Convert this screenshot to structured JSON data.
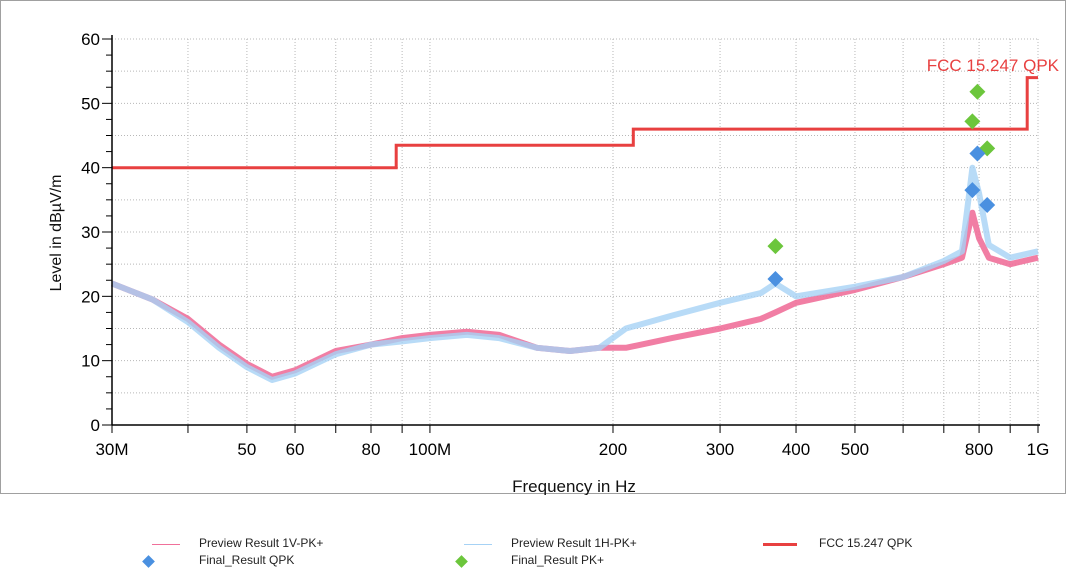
{
  "chart_data": {
    "type": "line",
    "title": "",
    "xlabel": "Frequency in Hz",
    "ylabel": "Level in dBµV/m",
    "x_scale": "log",
    "xlim": [
      30000000,
      1000000000
    ],
    "ylim": [
      0,
      60
    ],
    "grid": true,
    "legend_position": "bottom",
    "y_ticks": [
      0,
      10,
      20,
      30,
      40,
      50,
      60
    ],
    "y_tick_labels": [
      "0",
      "10",
      "20",
      "30",
      "40",
      "50",
      "60"
    ],
    "x_ticks": [
      30000000,
      50000000,
      60000000,
      80000000,
      100000000,
      200000000,
      300000000,
      400000000,
      500000000,
      800000000,
      1000000000
    ],
    "x_tick_labels": [
      "30M",
      "50",
      "60",
      "80",
      "100M",
      "200",
      "300",
      "400",
      "500",
      "800",
      "1G"
    ],
    "limit_label": "FCC 15.247 QPK",
    "series": [
      {
        "name": "Preview Result 1V-PK+",
        "color": "#f0709a",
        "x": [
          30000000,
          35000000,
          40000000,
          45000000,
          50000000,
          55000000,
          60000000,
          70000000,
          80000000,
          90000000,
          100000000,
          115000000,
          130000000,
          150000000,
          170000000,
          190000000,
          210000000,
          250000000,
          300000000,
          350000000,
          370000000,
          400000000,
          500000000,
          600000000,
          700000000,
          750000000,
          780000000,
          800000000,
          830000000,
          900000000,
          1000000000
        ],
        "y": [
          22,
          19.5,
          16.5,
          12.5,
          9.5,
          7.5,
          8.5,
          11.5,
          12.5,
          13.5,
          14,
          14.5,
          14,
          12,
          11.5,
          12,
          12,
          13.5,
          15,
          16.5,
          17.5,
          19,
          21,
          23,
          25,
          26,
          33,
          29,
          26,
          25,
          26
        ]
      },
      {
        "name": "Preview Result 1H-PK+",
        "color": "#a6d2f5",
        "x": [
          30000000,
          35000000,
          40000000,
          45000000,
          50000000,
          55000000,
          60000000,
          70000000,
          80000000,
          90000000,
          100000000,
          115000000,
          130000000,
          150000000,
          170000000,
          190000000,
          210000000,
          250000000,
          300000000,
          350000000,
          370000000,
          400000000,
          500000000,
          600000000,
          700000000,
          750000000,
          780000000,
          800000000,
          830000000,
          900000000,
          1000000000
        ],
        "y": [
          22,
          19.5,
          16,
          12,
          9,
          7,
          8,
          11,
          12.5,
          13,
          13.5,
          14,
          13.5,
          12,
          11.5,
          12,
          15,
          17,
          19,
          20.5,
          22,
          20,
          21.5,
          23,
          25.5,
          27,
          40,
          36,
          28,
          26,
          27
        ]
      },
      {
        "name": "FCC 15.247 QPK",
        "color": "#e84040",
        "x": [
          30000000,
          88000000,
          88000000,
          216000000,
          216000000,
          960000000,
          960000000,
          1000000000
        ],
        "y": [
          40,
          40,
          43.5,
          43.5,
          46,
          46,
          54,
          54
        ]
      }
    ],
    "points": [
      {
        "name": "Final_Result QPK",
        "color": "#4a90e0",
        "x": [
          370000000,
          780000000,
          795000000,
          825000000
        ],
        "y": [
          22.7,
          36.5,
          42.2,
          34.2
        ]
      },
      {
        "name": "Final_Result PK+",
        "color": "#6cc63c",
        "x": [
          370000000,
          780000000,
          795000000,
          825000000
        ],
        "y": [
          27.8,
          47.2,
          51.8,
          43.0
        ]
      }
    ]
  }
}
